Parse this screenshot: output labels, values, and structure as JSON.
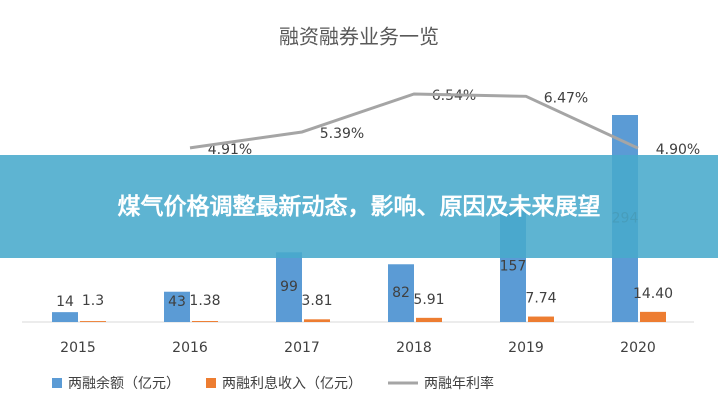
{
  "chart_data": {
    "type": "bar-line",
    "title": "融资融券业务一览",
    "categories": [
      "2015",
      "2016",
      "2017",
      "2018",
      "2019",
      "2020"
    ],
    "series": [
      {
        "name": "两融余额（亿元）",
        "color": "#5b9bd5",
        "type": "bar",
        "values": [
          14,
          43,
          99,
          82,
          157,
          294
        ]
      },
      {
        "name": "两融利息收入（亿元）",
        "color": "#ed7d31",
        "type": "bar",
        "values": [
          1.3,
          1.38,
          3.81,
          5.91,
          7.74,
          14.4
        ],
        "value_labels": [
          "1.3",
          "1.38",
          "3.81",
          "5.91",
          "7.74",
          "14.40"
        ]
      },
      {
        "name": "两融年利率",
        "color": "#a5a5a5",
        "type": "line",
        "axis": "y2",
        "values": [
          null,
          4.91,
          5.39,
          6.54,
          6.47,
          4.9
        ],
        "value_labels": [
          null,
          "4.91%",
          "5.39%",
          "6.54%",
          "6.47%",
          "4.90%"
        ]
      }
    ]
  },
  "banner_text": "煤气价格调整最新动态，影响、原因及未来展望"
}
